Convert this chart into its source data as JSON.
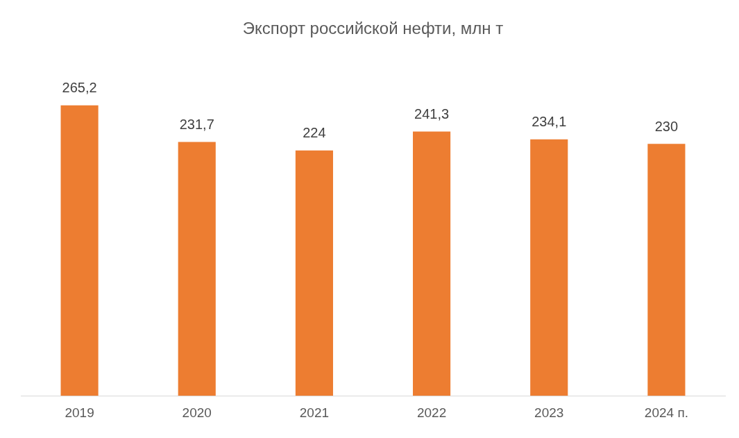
{
  "chart_data": {
    "type": "bar",
    "title": "Экспорт российской нефти, млн т",
    "categories": [
      "2019",
      "2020",
      "2021",
      "2022",
      "2023",
      "2024 п."
    ],
    "values": [
      265.2,
      231.7,
      224,
      241.3,
      234.1,
      230
    ],
    "value_labels": [
      "265,2",
      "231,7",
      "224",
      "241,3",
      "234,1",
      "230"
    ],
    "color": "#ed7d31",
    "grid": false,
    "legend": false
  }
}
